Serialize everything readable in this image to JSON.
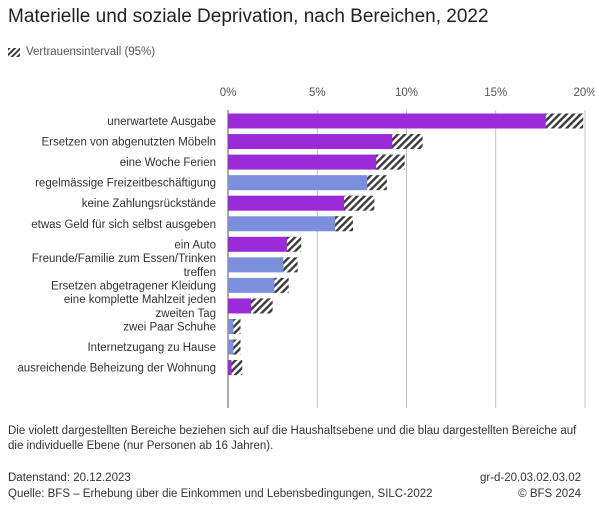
{
  "title": "Materielle und soziale Deprivation, nach Bereichen, 2022",
  "legend_label": "Vertrauensintervall (95%)",
  "chart_data": {
    "type": "bar",
    "orientation": "horizontal",
    "x_ticks": [
      "0%",
      "5%",
      "10%",
      "15%",
      "20%"
    ],
    "xlim": [
      0,
      20
    ],
    "grid": true,
    "colors": {
      "household": "#9b2bd6",
      "individual": "#7b8fdc"
    },
    "categories": [
      {
        "label": [
          "unerwartete Ausgabe"
        ],
        "group": "household",
        "value": 18.3,
        "ci": [
          17.8,
          19.9
        ]
      },
      {
        "label": [
          "Ersetzen von abgenutzten Möbeln"
        ],
        "group": "household",
        "value": 9.9,
        "ci": [
          9.2,
          10.9
        ]
      },
      {
        "label": [
          "eine Woche Ferien"
        ],
        "group": "household",
        "value": 8.9,
        "ci": [
          8.3,
          9.9
        ]
      },
      {
        "label": [
          "regelmässige Freizeitbeschäftigung"
        ],
        "group": "individual",
        "value": 8.3,
        "ci": [
          7.8,
          8.9
        ]
      },
      {
        "label": [
          "keine Zahlungsrückstände"
        ],
        "group": "household",
        "value": 7.2,
        "ci": [
          6.5,
          8.2
        ]
      },
      {
        "label": [
          "etwas Geld für sich selbst ausgeben"
        ],
        "group": "individual",
        "value": 6.4,
        "ci": [
          6.0,
          7.0
        ]
      },
      {
        "label": [
          "ein Auto"
        ],
        "group": "household",
        "value": 3.7,
        "ci": [
          3.3,
          4.1
        ]
      },
      {
        "label": [
          "Freunde/Familie zum Essen/Trinken",
          "treffen"
        ],
        "group": "individual",
        "value": 3.5,
        "ci": [
          3.1,
          3.9
        ]
      },
      {
        "label": [
          "Ersetzen abgetragener Kleidung"
        ],
        "group": "individual",
        "value": 3.0,
        "ci": [
          2.6,
          3.4
        ]
      },
      {
        "label": [
          "eine komplette Mahlzeit jeden",
          "zweiten Tag"
        ],
        "group": "household",
        "value": 1.9,
        "ci": [
          1.3,
          2.5
        ]
      },
      {
        "label": [
          "zwei Paar Schuhe"
        ],
        "group": "individual",
        "value": 0.5,
        "ci": [
          0.3,
          0.7
        ]
      },
      {
        "label": [
          "Internetzugang zu Hause"
        ],
        "group": "individual",
        "value": 0.5,
        "ci": [
          0.3,
          0.7
        ]
      },
      {
        "label": [
          "ausreichende Beheizung der Wohnung"
        ],
        "group": "household",
        "value": 0.5,
        "ci": [
          0.2,
          0.8
        ]
      }
    ]
  },
  "footnote": "Die violett dargestellten Bereiche beziehen sich auf die Haushaltsebene und die blau dargestellten Bereiche auf die individuelle Ebene (nur Personen ab 16 Jahren).",
  "footer": {
    "date": "Datenstand: 20.12.2023",
    "source": "Quelle: BFS – Erhebung über die Einkommen und Lebensbedingungen, SILC-2022",
    "code": "gr-d-20.03.02.03.02",
    "copyright": "© BFS 2024"
  }
}
